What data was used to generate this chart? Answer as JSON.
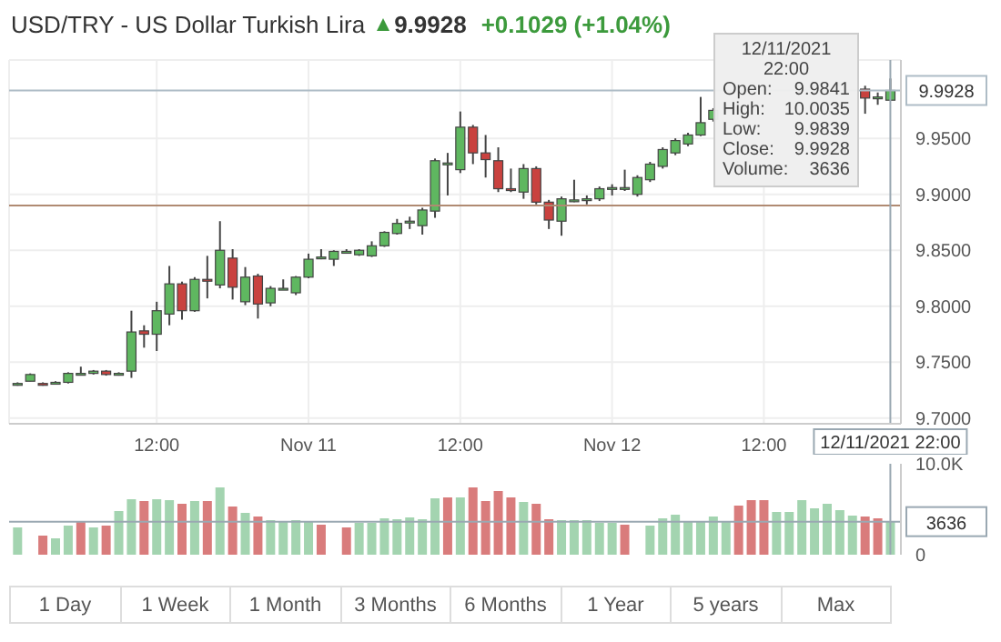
{
  "chart_data": [
    {
      "type": "candlestick",
      "title": "USD/TRY - US Dollar Turkish Lira",
      "subtitle": "9.9928",
      "annotations": [
        "+0.1029 (+1.04%)",
        "12/11/2021",
        "22:00",
        "Open:",
        "9.9841",
        "High:",
        "10.0035",
        "Low:",
        "9.9839",
        "Close:",
        "9.9928",
        "Volume:",
        "3636"
      ],
      "x": [
        "2021-11-10T01:00",
        "2021-11-10T02:00",
        "2021-11-10T03:00",
        "2021-11-10T04:00",
        "2021-11-10T05:00",
        "2021-11-10T06:00",
        "2021-11-10T07:00",
        "2021-11-10T08:00",
        "2021-11-10T09:00",
        "2021-11-10T10:00",
        "2021-11-10T11:00",
        "2021-11-10T12:00",
        "2021-11-10T13:00",
        "2021-11-10T14:00",
        "2021-11-10T15:00",
        "2021-11-10T16:00",
        "2021-11-10T17:00",
        "2021-11-10T18:00",
        "2021-11-10T19:00",
        "2021-11-10T20:00",
        "2021-11-10T21:00",
        "2021-11-10T22:00",
        "2021-11-10T23:00",
        "2021-11-11T00:00",
        "2021-11-11T01:00",
        "2021-11-11T02:00",
        "2021-11-11T03:00",
        "2021-11-11T04:00",
        "2021-11-11T05:00",
        "2021-11-11T06:00",
        "2021-11-11T07:00",
        "2021-11-11T08:00",
        "2021-11-11T09:00",
        "2021-11-11T10:00",
        "2021-11-11T11:00",
        "2021-11-11T12:00",
        "2021-11-11T13:00",
        "2021-11-11T14:00",
        "2021-11-11T15:00",
        "2021-11-11T16:00",
        "2021-11-11T17:00",
        "2021-11-11T18:00",
        "2021-11-11T19:00",
        "2021-11-11T20:00",
        "2021-11-11T21:00",
        "2021-11-11T22:00",
        "2021-11-11T23:00",
        "2021-11-12T00:00",
        "2021-11-12T01:00",
        "2021-11-12T02:00",
        "2021-11-12T03:00",
        "2021-11-12T04:00",
        "2021-11-12T05:00",
        "2021-11-12T06:00",
        "2021-11-12T07:00",
        "2021-11-12T08:00",
        "2021-11-12T20:00",
        "2021-11-12T21:00",
        "2021-11-12T22:00"
      ],
      "ohlc": [
        [
          9.731,
          9.732,
          9.729,
          9.731
        ],
        [
          9.733,
          9.74,
          9.733,
          9.739
        ],
        [
          9.731,
          9.732,
          9.729,
          9.73
        ],
        [
          9.732,
          9.733,
          9.731,
          9.732
        ],
        [
          9.732,
          9.741,
          9.731,
          9.74
        ],
        [
          9.74,
          9.746,
          9.739,
          9.74
        ],
        [
          9.74,
          9.743,
          9.739,
          9.742
        ],
        [
          9.742,
          9.743,
          9.738,
          9.739
        ],
        [
          9.739,
          9.741,
          9.738,
          9.74
        ],
        [
          9.742,
          9.796,
          9.736,
          9.777
        ],
        [
          9.778,
          9.783,
          9.763,
          9.775
        ],
        [
          9.775,
          9.804,
          9.76,
          9.796
        ],
        [
          9.793,
          9.836,
          9.783,
          9.82
        ],
        [
          9.82,
          9.822,
          9.788,
          9.796
        ],
        [
          9.796,
          9.826,
          9.795,
          9.824
        ],
        [
          9.824,
          9.845,
          9.807,
          9.823
        ],
        [
          9.819,
          9.876,
          9.816,
          9.85
        ],
        [
          9.843,
          9.851,
          9.806,
          9.817
        ],
        [
          9.804,
          9.835,
          9.801,
          9.826
        ],
        [
          9.827,
          9.829,
          9.789,
          9.802
        ],
        [
          9.803,
          9.818,
          9.8,
          9.816
        ],
        [
          9.816,
          9.824,
          9.815,
          9.816
        ],
        [
          9.812,
          9.827,
          9.81,
          9.826
        ],
        [
          9.826,
          9.847,
          9.825,
          9.842
        ],
        [
          9.843,
          9.851,
          9.842,
          9.844
        ],
        [
          9.842,
          9.85,
          9.836,
          9.849
        ],
        [
          9.849,
          9.851,
          9.848,
          9.849
        ],
        [
          9.846,
          9.851,
          9.845,
          9.85
        ],
        [
          9.845,
          9.858,
          9.844,
          9.854
        ],
        [
          9.854,
          9.867,
          9.853,
          9.866
        ],
        [
          9.865,
          9.878,
          9.864,
          9.874
        ],
        [
          9.875,
          9.88,
          9.869,
          9.876
        ],
        [
          9.872,
          9.888,
          9.864,
          9.886
        ],
        [
          9.885,
          9.932,
          9.879,
          9.93
        ],
        [
          9.927,
          9.937,
          9.899,
          9.928
        ],
        [
          9.922,
          9.974,
          9.919,
          9.96
        ],
        [
          9.96,
          9.962,
          9.927,
          9.937
        ],
        [
          9.937,
          9.953,
          9.915,
          9.931
        ],
        [
          9.93,
          9.942,
          9.902,
          9.905
        ],
        [
          9.905,
          9.923,
          9.902,
          9.904
        ],
        [
          9.902,
          9.927,
          9.896,
          9.923
        ],
        [
          9.923,
          9.925,
          9.891,
          9.893
        ],
        [
          9.893,
          9.895,
          9.869,
          9.877
        ],
        [
          9.876,
          9.898,
          9.863,
          9.896
        ],
        [
          9.895,
          9.913,
          9.893,
          9.895
        ],
        [
          9.896,
          9.899,
          9.891,
          9.896
        ],
        [
          9.896,
          9.907,
          9.894,
          9.905
        ],
        [
          9.905,
          9.909,
          9.899,
          9.906
        ],
        [
          9.905,
          9.922,
          9.903,
          9.906
        ],
        [
          9.9,
          9.917,
          9.898,
          9.915
        ],
        [
          9.913,
          9.929,
          9.911,
          9.927
        ],
        [
          9.925,
          9.942,
          9.923,
          9.94
        ],
        [
          9.937,
          9.95,
          9.935,
          9.948
        ],
        [
          9.945,
          9.955,
          9.943,
          9.953
        ],
        [
          9.953,
          9.987,
          9.952,
          9.964
        ],
        [
          9.967,
          9.977,
          9.965,
          9.975
        ],
        [
          9.994,
          9.997,
          9.972,
          9.986
        ],
        [
          9.986,
          9.991,
          9.98,
          9.987
        ],
        [
          9.9841,
          10.0035,
          9.9839,
          9.9928
        ]
      ],
      "colors": [
        "#5fb760",
        "#5fb760",
        "#c9423f",
        "#5fb760",
        "#5fb760",
        "#5fb760",
        "#5fb760",
        "#c9423f",
        "#5fb760",
        "#5fb760",
        "#c9423f",
        "#5fb760",
        "#5fb760",
        "#c9423f",
        "#5fb760",
        "#c9423f",
        "#5fb760",
        "#c9423f",
        "#5fb760",
        "#c9423f",
        "#5fb760",
        "#5fb760",
        "#5fb760",
        "#5fb760",
        "#5fb760",
        "#5fb760",
        "#5fb760",
        "#5fb760",
        "#5fb760",
        "#5fb760",
        "#5fb760",
        "#5fb760",
        "#5fb760",
        "#5fb760",
        "#5fb760",
        "#5fb760",
        "#c9423f",
        "#c9423f",
        "#c9423f",
        "#c9423f",
        "#5fb760",
        "#c9423f",
        "#c9423f",
        "#5fb760",
        "#5fb760",
        "#5fb760",
        "#5fb760",
        "#5fb760",
        "#5fb760",
        "#5fb760",
        "#5fb760",
        "#5fb760",
        "#5fb760",
        "#5fb760",
        "#5fb760",
        "#5fb760",
        "#c9423f",
        "#5fb760",
        "#5fb760"
      ],
      "xlim": [
        "2021-11-10T00:20",
        "2021-11-12T22:50"
      ],
      "xticks": [
        {
          "value": "2021-11-10T12:00",
          "label": "12:00"
        },
        {
          "value": "2021-11-11T00:00",
          "label": "Nov 11"
        },
        {
          "value": "2021-11-11T12:00",
          "label": "12:00"
        },
        {
          "value": "2021-11-12T00:00",
          "label": "Nov 12"
        },
        {
          "value": "2021-11-12T12:00",
          "label": "12:00"
        }
      ],
      "ylim": [
        9.695,
        10.02
      ],
      "yticks": [
        {
          "value": 9.7,
          "label": "9.7000"
        },
        {
          "value": 9.75,
          "label": "9.7500"
        },
        {
          "value": 9.8,
          "label": "9.8000"
        },
        {
          "value": 9.85,
          "label": "9.8500"
        },
        {
          "value": 9.9,
          "label": "9.9000"
        },
        {
          "value": 9.95,
          "label": "9.9500"
        }
      ],
      "ref_lines": [
        {
          "axis": "y",
          "value": 9.9928,
          "label": "9.9928",
          "color": "#aebcc6"
        },
        {
          "axis": "y",
          "value": 9.89,
          "color": "#b08a72"
        },
        {
          "axis": "x",
          "value": "2021-11-12T22:00",
          "label": "12/11/2021 22:00",
          "color": "#9aa8b2"
        }
      ],
      "grid": true
    },
    {
      "type": "bar",
      "annotations": [
        "1 Day",
        "1 Week",
        "1 Month",
        "3 Months",
        "6 Months",
        "1 Year",
        "5 years",
        "Max"
      ],
      "x": [
        "2021-11-10T01:00",
        "2021-11-10T02:00",
        "2021-11-10T03:00",
        "2021-11-10T04:00",
        "2021-11-10T05:00",
        "2021-11-10T06:00",
        "2021-11-10T07:00",
        "2021-11-10T08:00",
        "2021-11-10T09:00",
        "2021-11-10T10:00",
        "2021-11-10T11:00",
        "2021-11-10T12:00",
        "2021-11-10T13:00",
        "2021-11-10T14:00",
        "2021-11-10T15:00",
        "2021-11-10T16:00",
        "2021-11-10T17:00",
        "2021-11-10T18:00",
        "2021-11-10T19:00",
        "2021-11-10T20:00",
        "2021-11-10T21:00",
        "2021-11-10T22:00",
        "2021-11-10T23:00",
        "2021-11-11T00:00",
        "2021-11-11T01:00",
        "2021-11-11T02:00",
        "2021-11-11T03:00",
        "2021-11-11T04:00",
        "2021-11-11T05:00",
        "2021-11-11T06:00",
        "2021-11-11T07:00",
        "2021-11-11T08:00",
        "2021-11-11T09:00",
        "2021-11-11T10:00",
        "2021-11-11T11:00",
        "2021-11-11T12:00",
        "2021-11-11T13:00",
        "2021-11-11T14:00",
        "2021-11-11T15:00",
        "2021-11-11T16:00",
        "2021-11-11T17:00",
        "2021-11-11T18:00",
        "2021-11-11T19:00",
        "2021-11-11T20:00",
        "2021-11-11T21:00",
        "2021-11-11T22:00",
        "2021-11-11T23:00",
        "2021-11-12T00:00",
        "2021-11-12T01:00",
        "2021-11-12T02:00",
        "2021-11-12T03:00",
        "2021-11-12T04:00",
        "2021-11-12T05:00",
        "2021-11-12T06:00",
        "2021-11-12T07:00",
        "2021-11-12T08:00",
        "2021-11-12T09:00",
        "2021-11-12T10:00",
        "2021-11-12T11:00",
        "2021-11-12T12:00",
        "2021-11-12T13:00",
        "2021-11-12T14:00",
        "2021-11-12T15:00",
        "2021-11-12T16:00",
        "2021-11-12T17:00",
        "2021-11-12T18:00",
        "2021-11-12T19:00",
        "2021-11-12T20:00",
        "2021-11-12T21:00",
        "2021-11-12T22:00"
      ],
      "values": [
        3000,
        null,
        2100,
        1800,
        3200,
        3600,
        3000,
        3200,
        4800,
        6100,
        5900,
        6100,
        6000,
        5600,
        5900,
        5900,
        7400,
        5300,
        4600,
        4200,
        3800,
        3600,
        3800,
        3600,
        3300,
        null,
        3000,
        3500,
        3500,
        4000,
        3900,
        4100,
        3900,
        6200,
        6300,
        6300,
        7400,
        5900,
        7000,
        6300,
        5800,
        5600,
        3900,
        3800,
        3800,
        3800,
        3500,
        3500,
        3300,
        null,
        3200,
        4000,
        4400,
        3700,
        3700,
        4200,
        3600,
        5400,
        6000,
        6000,
        4700,
        4700,
        6000,
        5100,
        5600,
        4900,
        4300,
        4200,
        4000,
        3636
      ],
      "colors": [
        "#a3d4b0",
        null,
        "#d97c7c",
        "#a3d4b0",
        "#a3d4b0",
        "#d97c7c",
        "#a3d4b0",
        "#d97c7c",
        "#a3d4b0",
        "#a3d4b0",
        "#d97c7c",
        "#a3d4b0",
        "#a3d4b0",
        "#d97c7c",
        "#a3d4b0",
        "#d97c7c",
        "#a3d4b0",
        "#d97c7c",
        "#a3d4b0",
        "#d97c7c",
        "#a3d4b0",
        "#a3d4b0",
        "#a3d4b0",
        "#a3d4b0",
        "#d97c7c",
        null,
        "#d97c7c",
        "#a3d4b0",
        "#a3d4b0",
        "#a3d4b0",
        "#a3d4b0",
        "#a3d4b0",
        "#a3d4b0",
        "#a3d4b0",
        "#d97c7c",
        "#a3d4b0",
        "#d97c7c",
        "#d97c7c",
        "#d97c7c",
        "#d97c7c",
        "#a3d4b0",
        "#d97c7c",
        "#d97c7c",
        "#a3d4b0",
        "#a3d4b0",
        "#a3d4b0",
        "#a3d4b0",
        "#a3d4b0",
        "#d97c7c",
        null,
        "#a3d4b0",
        "#a3d4b0",
        "#a3d4b0",
        "#a3d4b0",
        "#a3d4b0",
        "#a3d4b0",
        "#a3d4b0",
        "#d97c7c",
        "#d97c7c",
        "#d97c7c",
        "#a3d4b0",
        "#a3d4b0",
        "#a3d4b0",
        "#a3d4b0",
        "#a3d4b0",
        "#a3d4b0",
        "#a3d4b0",
        "#d97c7c",
        "#d97c7c",
        "#a3d4b0"
      ],
      "xlim": [
        "2021-11-10T00:20",
        "2021-11-12T22:50"
      ],
      "ylim": [
        0,
        10000
      ],
      "yticks": [
        0,
        {
          "value": 10000,
          "label": "10.0K"
        }
      ],
      "ref_lines": [
        {
          "axis": "y",
          "value": 3636,
          "label": "3636",
          "color": "#9aa8b2"
        },
        {
          "axis": "x",
          "value": "2021-11-12T22:00",
          "color": "#9aa8b2"
        }
      ],
      "tick_labels": "y"
    }
  ]
}
